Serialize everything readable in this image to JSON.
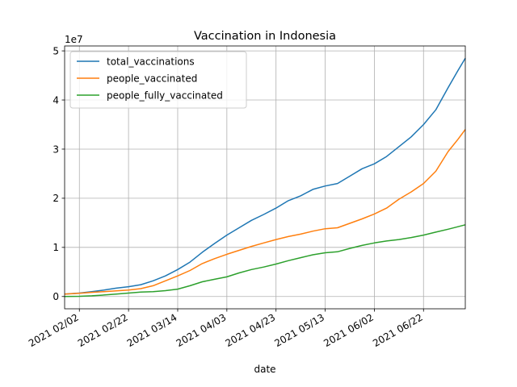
{
  "chart_data": {
    "type": "line",
    "title": "Vaccination in Indonesia",
    "xlabel": "date",
    "ylabel": "",
    "y_multiplier_label": "1e7",
    "x_range": [
      "2021-01-27",
      "2021-07-09"
    ],
    "ylim": [
      -2500000,
      51000000
    ],
    "grid": true,
    "legend_position": "upper-left",
    "x_ticks": [
      "2021-02-02",
      "2021-02-22",
      "2021-03-14",
      "2021-04-03",
      "2021-04-23",
      "2021-05-13",
      "2021-06-02",
      "2021-06-22"
    ],
    "x_tick_labels": [
      "2021 02/02",
      "2021 02/22",
      "2021 03/14",
      "2021 04/03",
      "2021 04/23",
      "2021 05/13",
      "2021 06/02",
      "2021 06/22"
    ],
    "y_ticks": [
      0,
      10000000,
      20000000,
      30000000,
      40000000,
      50000000
    ],
    "y_tick_labels": [
      "0",
      "1",
      "2",
      "3",
      "4",
      "5"
    ],
    "series": [
      {
        "name": "total_vaccinations",
        "color": "#1f77b4",
        "points": [
          [
            "2021-01-27",
            500000
          ],
          [
            "2021-02-02",
            700000
          ],
          [
            "2021-02-07",
            1000000
          ],
          [
            "2021-02-12",
            1300000
          ],
          [
            "2021-02-17",
            1700000
          ],
          [
            "2021-02-22",
            2000000
          ],
          [
            "2021-02-27",
            2400000
          ],
          [
            "2021-03-04",
            3200000
          ],
          [
            "2021-03-09",
            4200000
          ],
          [
            "2021-03-14",
            5500000
          ],
          [
            "2021-03-19",
            7000000
          ],
          [
            "2021-03-24",
            9000000
          ],
          [
            "2021-03-29",
            10800000
          ],
          [
            "2021-04-03",
            12500000
          ],
          [
            "2021-04-08",
            14000000
          ],
          [
            "2021-04-13",
            15500000
          ],
          [
            "2021-04-18",
            16700000
          ],
          [
            "2021-04-23",
            18000000
          ],
          [
            "2021-04-28",
            19500000
          ],
          [
            "2021-05-03",
            20500000
          ],
          [
            "2021-05-08",
            21800000
          ],
          [
            "2021-05-13",
            22500000
          ],
          [
            "2021-05-18",
            23000000
          ],
          [
            "2021-05-23",
            24500000
          ],
          [
            "2021-05-28",
            26000000
          ],
          [
            "2021-06-02",
            27000000
          ],
          [
            "2021-06-07",
            28500000
          ],
          [
            "2021-06-12",
            30500000
          ],
          [
            "2021-06-17",
            32500000
          ],
          [
            "2021-06-22",
            35000000
          ],
          [
            "2021-06-27",
            38000000
          ],
          [
            "2021-07-02",
            42500000
          ],
          [
            "2021-07-06",
            46000000
          ],
          [
            "2021-07-09",
            48500000
          ]
        ]
      },
      {
        "name": "people_vaccinated",
        "color": "#ff7f0e",
        "points": [
          [
            "2021-01-27",
            500000
          ],
          [
            "2021-02-02",
            650000
          ],
          [
            "2021-02-07",
            850000
          ],
          [
            "2021-02-12",
            1000000
          ],
          [
            "2021-02-17",
            1150000
          ],
          [
            "2021-02-22",
            1300000
          ],
          [
            "2021-02-27",
            1600000
          ],
          [
            "2021-03-04",
            2200000
          ],
          [
            "2021-03-09",
            3200000
          ],
          [
            "2021-03-14",
            4200000
          ],
          [
            "2021-03-19",
            5300000
          ],
          [
            "2021-03-24",
            6700000
          ],
          [
            "2021-03-29",
            7700000
          ],
          [
            "2021-04-03",
            8600000
          ],
          [
            "2021-04-08",
            9400000
          ],
          [
            "2021-04-13",
            10200000
          ],
          [
            "2021-04-18",
            10900000
          ],
          [
            "2021-04-23",
            11600000
          ],
          [
            "2021-04-28",
            12200000
          ],
          [
            "2021-05-03",
            12700000
          ],
          [
            "2021-05-08",
            13300000
          ],
          [
            "2021-05-13",
            13800000
          ],
          [
            "2021-05-18",
            14000000
          ],
          [
            "2021-05-23",
            14900000
          ],
          [
            "2021-05-28",
            15800000
          ],
          [
            "2021-06-02",
            16800000
          ],
          [
            "2021-06-07",
            18000000
          ],
          [
            "2021-06-12",
            19800000
          ],
          [
            "2021-06-17",
            21300000
          ],
          [
            "2021-06-22",
            23000000
          ],
          [
            "2021-06-27",
            25500000
          ],
          [
            "2021-07-02",
            29500000
          ],
          [
            "2021-07-06",
            32000000
          ],
          [
            "2021-07-09",
            34000000
          ]
        ]
      },
      {
        "name": "people_fully_vaccinated",
        "color": "#2ca02c",
        "points": [
          [
            "2021-01-27",
            0
          ],
          [
            "2021-02-02",
            50000
          ],
          [
            "2021-02-07",
            150000
          ],
          [
            "2021-02-12",
            300000
          ],
          [
            "2021-02-17",
            500000
          ],
          [
            "2021-02-22",
            700000
          ],
          [
            "2021-02-27",
            900000
          ],
          [
            "2021-03-04",
            1000000
          ],
          [
            "2021-03-09",
            1200000
          ],
          [
            "2021-03-14",
            1500000
          ],
          [
            "2021-03-19",
            2200000
          ],
          [
            "2021-03-24",
            3000000
          ],
          [
            "2021-03-29",
            3500000
          ],
          [
            "2021-04-03",
            4000000
          ],
          [
            "2021-04-08",
            4800000
          ],
          [
            "2021-04-13",
            5500000
          ],
          [
            "2021-04-18",
            6000000
          ],
          [
            "2021-04-23",
            6600000
          ],
          [
            "2021-04-28",
            7300000
          ],
          [
            "2021-05-03",
            7900000
          ],
          [
            "2021-05-08",
            8500000
          ],
          [
            "2021-05-13",
            8900000
          ],
          [
            "2021-05-18",
            9100000
          ],
          [
            "2021-05-23",
            9800000
          ],
          [
            "2021-05-28",
            10400000
          ],
          [
            "2021-06-02",
            10900000
          ],
          [
            "2021-06-07",
            11300000
          ],
          [
            "2021-06-12",
            11600000
          ],
          [
            "2021-06-17",
            12000000
          ],
          [
            "2021-06-22",
            12500000
          ],
          [
            "2021-06-27",
            13100000
          ],
          [
            "2021-07-02",
            13700000
          ],
          [
            "2021-07-06",
            14200000
          ],
          [
            "2021-07-09",
            14600000
          ]
        ]
      }
    ]
  }
}
